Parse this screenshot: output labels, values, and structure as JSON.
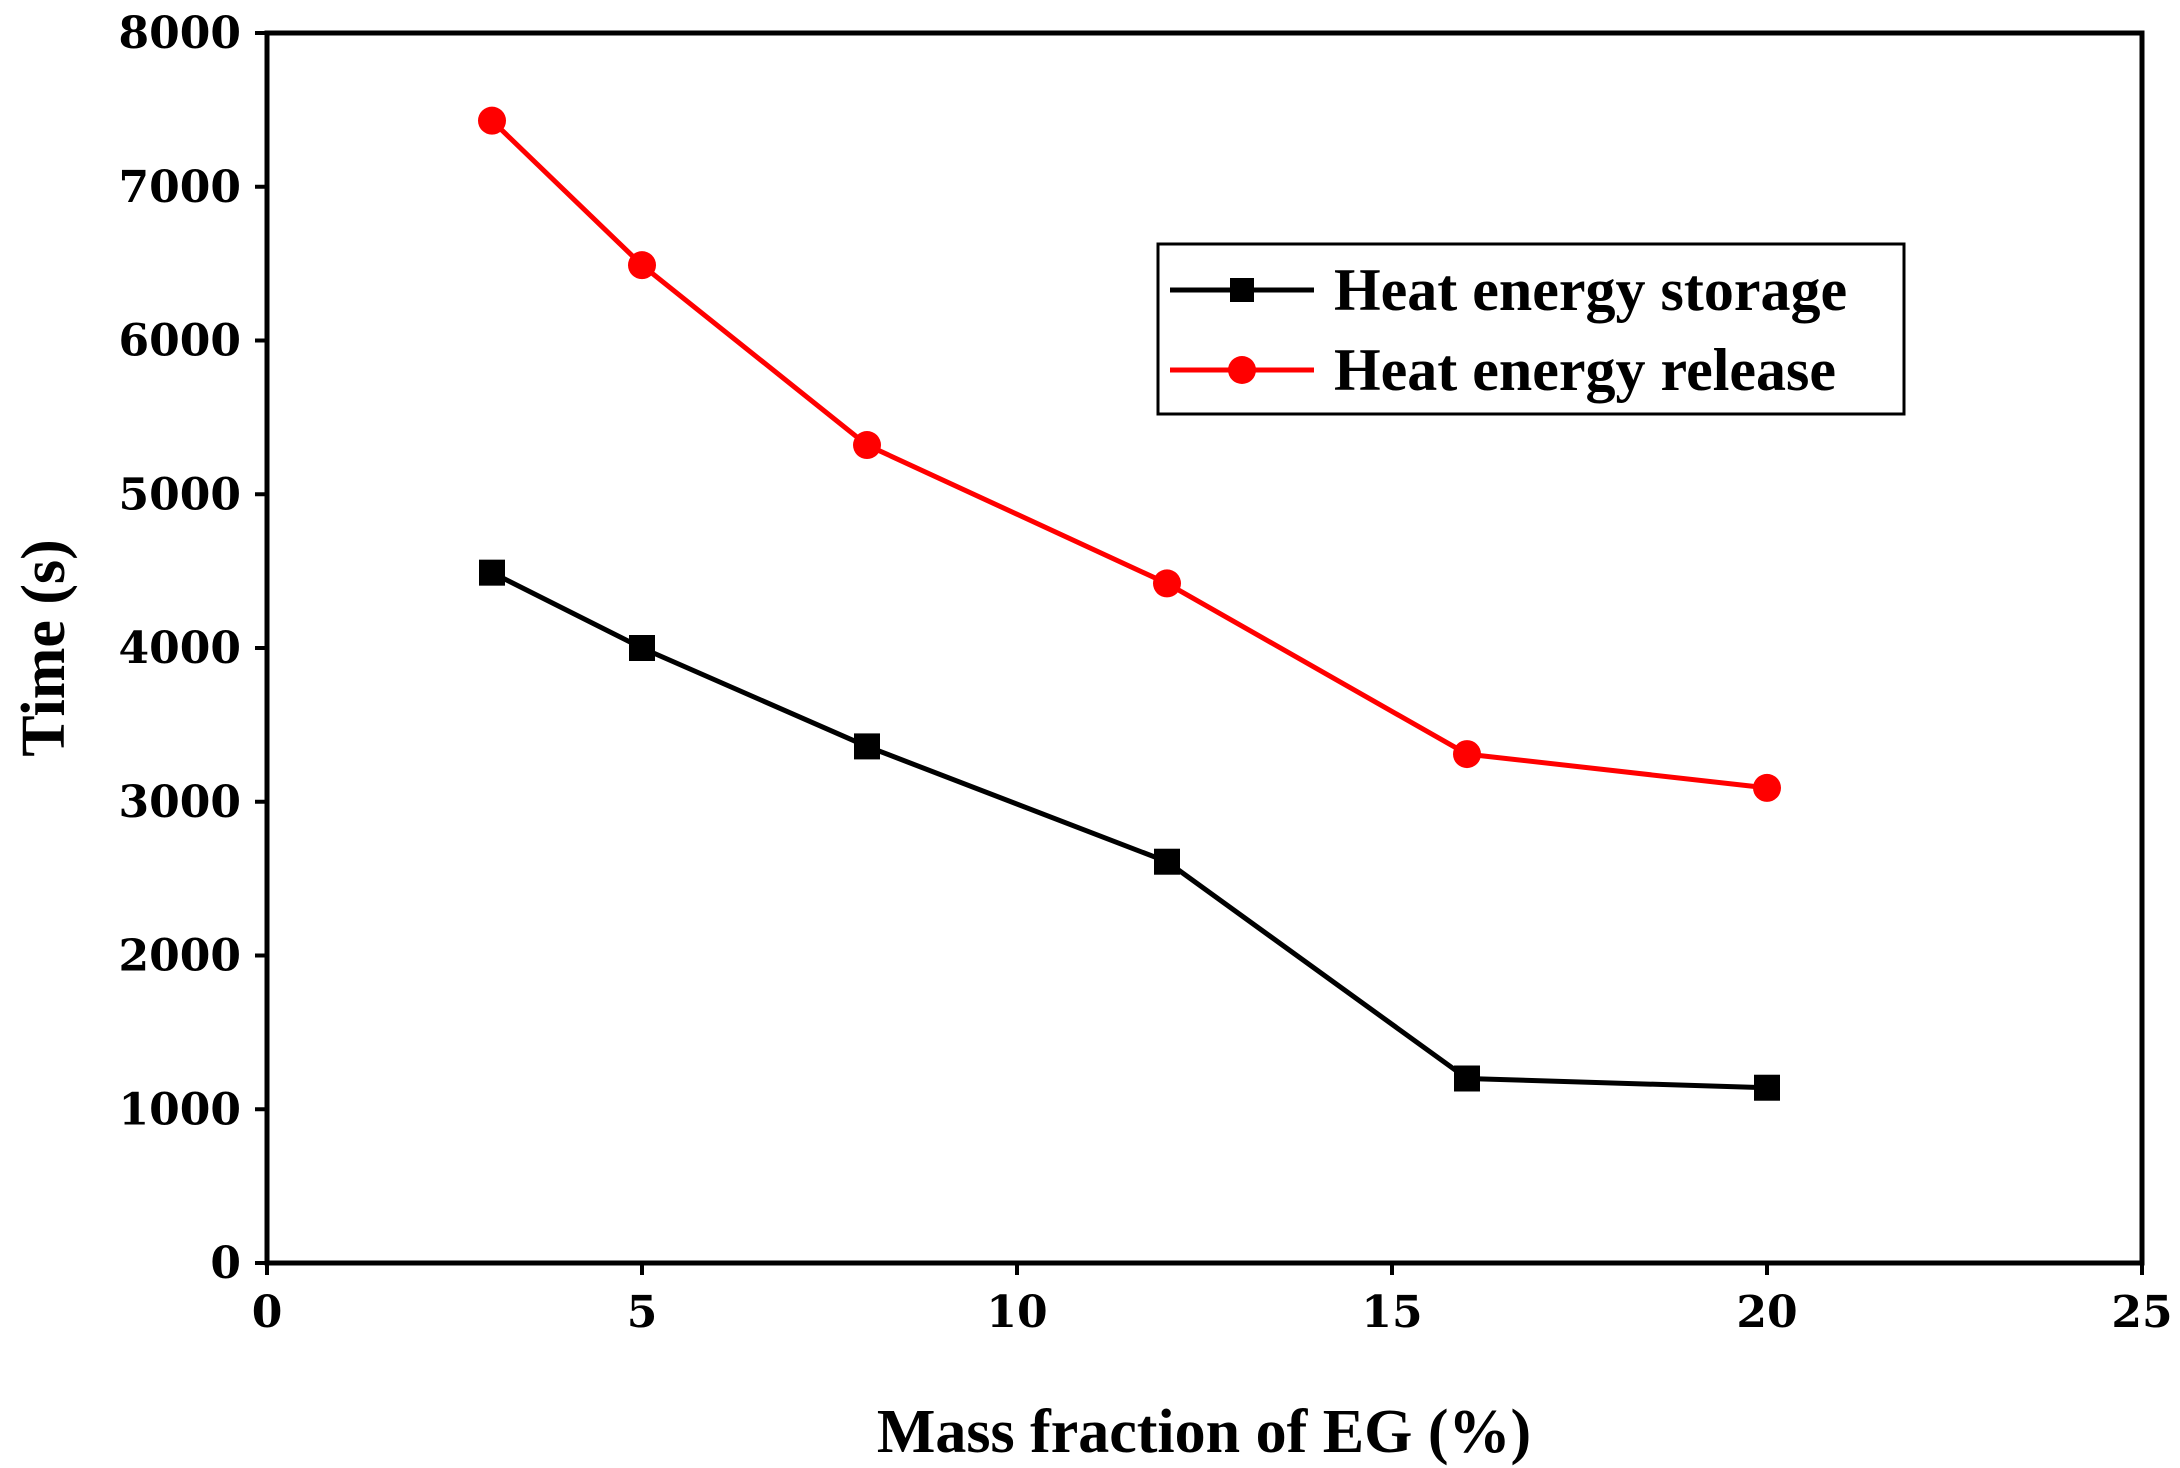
{
  "chart_data": {
    "type": "line",
    "title": "",
    "xlabel": "Mass fraction of EG (%)",
    "ylabel": "Time (s)",
    "xlim": [
      0,
      25
    ],
    "ylim": [
      0,
      8000
    ],
    "xticks": [
      0,
      5,
      10,
      15,
      20,
      25
    ],
    "yticks": [
      0,
      1000,
      2000,
      3000,
      4000,
      5000,
      6000,
      7000,
      8000
    ],
    "x": [
      3,
      5,
      8,
      12,
      16,
      20
    ],
    "grid": false,
    "legend": "upper-right",
    "series": [
      {
        "name": "Heat energy storage",
        "color": "#000000",
        "marker": "square",
        "values": [
          4490,
          4000,
          3360,
          2610,
          1200,
          1140
        ]
      },
      {
        "name": "Heat energy release",
        "color": "#ff0000",
        "marker": "circle",
        "values": [
          7430,
          6490,
          5320,
          4420,
          3310,
          3090
        ]
      }
    ]
  }
}
